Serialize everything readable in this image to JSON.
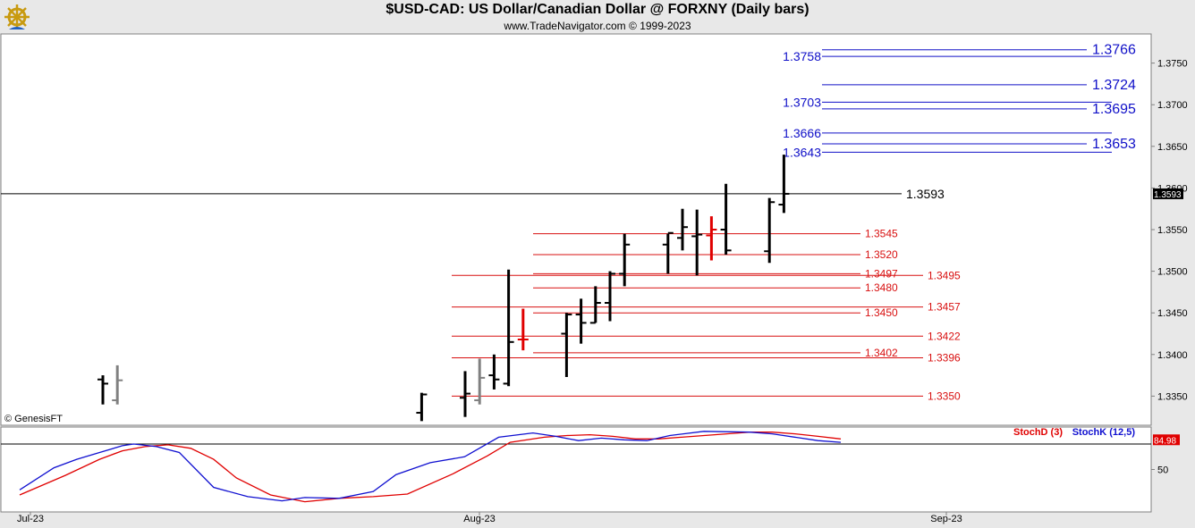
{
  "header": {
    "title": "$USD-CAD:  US Dollar/Canadian Dollar @ FORXNY  (Daily bars)",
    "subtitle": "www.TradeNavigator.com © 1999-2023"
  },
  "watermark": "© GenesisFT",
  "chart_data": [
    {
      "type": "ohlc",
      "instrument": "$USD-CAD",
      "ylim": [
        1.3315,
        1.3785
      ],
      "y_ticks": [
        "1.3350",
        "1.3400",
        "1.3450",
        "1.3500",
        "1.3550",
        "1.3600",
        "1.3650",
        "1.3700",
        "1.3750"
      ],
      "x_ticks": [
        "Jul-23",
        "Aug-23",
        "Sep-23"
      ],
      "last_price": {
        "value": 1.3593,
        "label": "1.3593",
        "axis_label": "1.3593"
      },
      "bars": [
        {
          "d": "2023-07-06",
          "o": 1.337,
          "h": 1.3375,
          "l": 1.334,
          "c": 1.3365,
          "color": "#000"
        },
        {
          "d": "2023-07-07",
          "o": 1.3345,
          "h": 1.3387,
          "l": 1.334,
          "c": 1.3369,
          "color": "#808080"
        },
        {
          "d": "2023-07-28",
          "o": 1.333,
          "h": 1.3354,
          "l": 1.332,
          "c": 1.3352,
          "color": "#000"
        },
        {
          "d": "2023-07-31",
          "o": 1.3348,
          "h": 1.338,
          "l": 1.3325,
          "c": 1.3353,
          "color": "#000"
        },
        {
          "d": "2023-08-01",
          "o": 1.3345,
          "h": 1.3395,
          "l": 1.334,
          "c": 1.3372,
          "color": "#808080"
        },
        {
          "d": "2023-08-02",
          "o": 1.3375,
          "h": 1.34,
          "l": 1.3358,
          "c": 1.337,
          "color": "#000"
        },
        {
          "d": "2023-08-03",
          "o": 1.3365,
          "h": 1.3502,
          "l": 1.3362,
          "c": 1.3415,
          "color": "#000"
        },
        {
          "d": "2023-08-04",
          "o": 1.3418,
          "h": 1.3455,
          "l": 1.3405,
          "c": 1.3418,
          "color": "#e00000"
        },
        {
          "d": "2023-08-07",
          "o": 1.3425,
          "h": 1.345,
          "l": 1.3373,
          "c": 1.3448,
          "color": "#000"
        },
        {
          "d": "2023-08-08",
          "o": 1.3448,
          "h": 1.3467,
          "l": 1.3413,
          "c": 1.3438,
          "color": "#000"
        },
        {
          "d": "2023-08-09",
          "o": 1.3438,
          "h": 1.3482,
          "l": 1.3438,
          "c": 1.3462,
          "color": "#000"
        },
        {
          "d": "2023-08-10",
          "o": 1.3462,
          "h": 1.35,
          "l": 1.344,
          "c": 1.3497,
          "color": "#000"
        },
        {
          "d": "2023-08-11",
          "o": 1.3497,
          "h": 1.3545,
          "l": 1.3482,
          "c": 1.3532,
          "color": "#000"
        },
        {
          "d": "2023-08-14",
          "o": 1.3532,
          "h": 1.3545,
          "l": 1.3497,
          "c": 1.3546,
          "color": "#000"
        },
        {
          "d": "2023-08-15",
          "o": 1.354,
          "h": 1.3575,
          "l": 1.3525,
          "c": 1.3553,
          "color": "#000"
        },
        {
          "d": "2023-08-16",
          "o": 1.3542,
          "h": 1.3574,
          "l": 1.3495,
          "c": 1.3544,
          "color": "#000"
        },
        {
          "d": "2023-08-17",
          "o": 1.3543,
          "h": 1.3566,
          "l": 1.3513,
          "c": 1.355,
          "color": "#e00000"
        },
        {
          "d": "2023-08-18",
          "o": 1.355,
          "h": 1.3605,
          "l": 1.352,
          "c": 1.3525,
          "color": "#000"
        },
        {
          "d": "2023-08-21",
          "o": 1.3524,
          "h": 1.3588,
          "l": 1.351,
          "c": 1.3583,
          "color": "#000"
        },
        {
          "d": "2023-08-22",
          "o": 1.358,
          "h": 1.364,
          "l": 1.357,
          "c": 1.3593,
          "color": "#000"
        }
      ],
      "levels_above": [
        {
          "value": 1.3766,
          "label": "1.3766",
          "side": "right"
        },
        {
          "value": 1.3758,
          "label": "1.3758",
          "side": "left"
        },
        {
          "value": 1.3724,
          "label": "1.3724",
          "side": "right"
        },
        {
          "value": 1.3703,
          "label": "1.3703",
          "side": "left"
        },
        {
          "value": 1.3695,
          "label": "1.3695",
          "side": "right"
        },
        {
          "value": 1.3666,
          "label": "1.3666",
          "side": "left"
        },
        {
          "value": 1.3653,
          "label": "1.3653",
          "side": "right"
        },
        {
          "value": 1.3643,
          "label": "1.3643",
          "side": "left"
        }
      ],
      "levels_below": [
        {
          "value": 1.3545,
          "label": "1.3545",
          "side": "left"
        },
        {
          "value": 1.352,
          "label": "1.3520",
          "side": "left"
        },
        {
          "value": 1.3497,
          "label": "1.3497",
          "side": "left"
        },
        {
          "value": 1.3495,
          "label": "1.3495",
          "side": "right"
        },
        {
          "value": 1.348,
          "label": "1.3480",
          "side": "left"
        },
        {
          "value": 1.3457,
          "label": "1.3457",
          "side": "right"
        },
        {
          "value": 1.345,
          "label": "1.3450",
          "side": "left"
        },
        {
          "value": 1.3422,
          "label": "1.3422",
          "side": "right"
        },
        {
          "value": 1.3402,
          "label": "1.3402",
          "side": "left"
        },
        {
          "value": 1.3396,
          "label": "1.3396",
          "side": "right"
        },
        {
          "value": 1.335,
          "label": "1.3350",
          "side": "right"
        }
      ],
      "colors": {
        "above": "#1010c8",
        "below": "#d81010",
        "last": "#000000"
      }
    },
    {
      "type": "line",
      "title": "StochD (3)   StochK (12,5)",
      "ylim": [
        0,
        100
      ],
      "y_ticks": [
        "50"
      ],
      "reference_line": 80,
      "last_value": {
        "value": 84.98,
        "label": "84.98"
      },
      "series": [
        {
          "name": "StochD (3)",
          "color": "#e00000",
          "values": [
            [
              0,
              20
            ],
            [
              4,
              43
            ],
            [
              7,
              62
            ],
            [
              9,
              72
            ],
            [
              11,
              77
            ],
            [
              13,
              79
            ],
            [
              15,
              75
            ],
            [
              17,
              62
            ],
            [
              19,
              40
            ],
            [
              22,
              20
            ],
            [
              25,
              12
            ],
            [
              28,
              16
            ],
            [
              31,
              18
            ],
            [
              34,
              21
            ],
            [
              38,
              45
            ],
            [
              41,
              66
            ],
            [
              43,
              82
            ],
            [
              46,
              88
            ],
            [
              48,
              90
            ],
            [
              50,
              91
            ],
            [
              52,
              89
            ],
            [
              54,
              86
            ],
            [
              56,
              86
            ],
            [
              58,
              88
            ],
            [
              62,
              92
            ],
            [
              64,
              94
            ],
            [
              66,
              94
            ],
            [
              68,
              92
            ],
            [
              70,
              89
            ],
            [
              72,
              86
            ]
          ]
        },
        {
          "name": "StochK (12,5)",
          "color": "#1010d0",
          "values": [
            [
              0,
              26
            ],
            [
              3,
              52
            ],
            [
              5,
              62
            ],
            [
              7,
              70
            ],
            [
              9,
              78
            ],
            [
              10,
              80
            ],
            [
              12,
              77
            ],
            [
              14,
              70
            ],
            [
              17,
              29
            ],
            [
              20,
              18
            ],
            [
              23,
              13
            ],
            [
              25,
              17
            ],
            [
              28,
              16
            ],
            [
              31,
              24
            ],
            [
              33,
              44
            ],
            [
              36,
              58
            ],
            [
              39,
              65
            ],
            [
              42,
              88
            ],
            [
              45,
              93
            ],
            [
              47,
              89
            ],
            [
              49,
              84
            ],
            [
              51,
              87
            ],
            [
              53,
              85
            ],
            [
              55,
              84
            ],
            [
              57,
              90
            ],
            [
              60,
              95
            ],
            [
              64,
              94
            ],
            [
              66,
              92
            ],
            [
              70,
              84
            ],
            [
              72,
              82
            ]
          ]
        }
      ]
    }
  ]
}
